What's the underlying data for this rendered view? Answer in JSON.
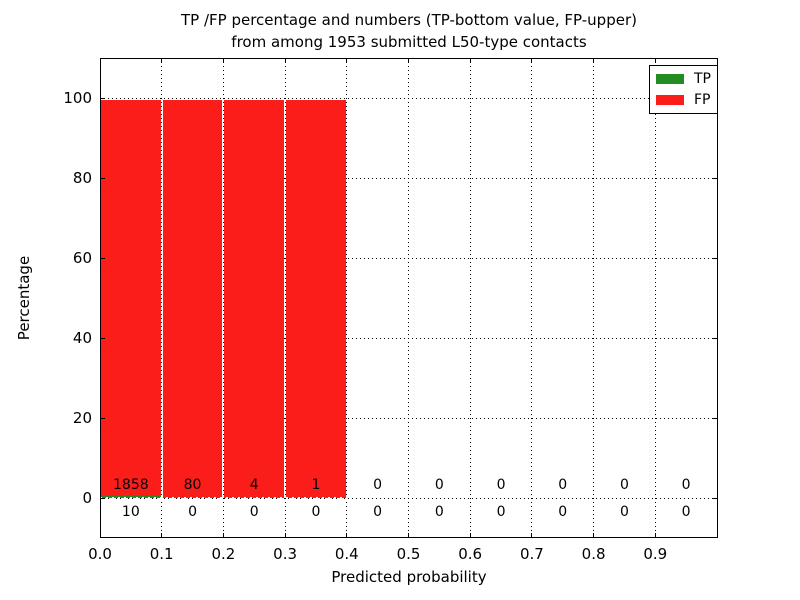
{
  "figure": {
    "title_line1": "TP /FP percentage and numbers (TP-bottom value, FP-upper)",
    "title_line2": "from among 1953 submitted L50-type contacts"
  },
  "axes": {
    "xlabel": "Predicted probability",
    "ylabel": "Percentage",
    "xtick_values": [
      0,
      0.1,
      0.2,
      0.3,
      0.4,
      0.5,
      0.6,
      0.7,
      0.8,
      0.9
    ],
    "xtick_labels": [
      "0.0",
      "0.1",
      "0.2",
      "0.3",
      "0.4",
      "0.5",
      "0.6",
      "0.7",
      "0.8",
      "0.9"
    ],
    "ytick_values": [
      0,
      20,
      40,
      60,
      80,
      100
    ],
    "ytick_labels": [
      "0",
      "20",
      "40",
      "60",
      "80",
      "100"
    ]
  },
  "legend": {
    "position": "upper right",
    "entries": [
      {
        "label": "TP",
        "color": "#228b22"
      },
      {
        "label": "FP",
        "color": "#fa1d1a"
      }
    ]
  },
  "chart_data": {
    "type": "bar",
    "stacked": true,
    "title": "TP /FP percentage and numbers (TP-bottom value, FP-upper)\nfrom among 1953 submitted L50-type contacts",
    "xlabel": "Predicted probability",
    "ylabel": "Percentage",
    "xlim": [
      0,
      1
    ],
    "ylim": [
      -10,
      110
    ],
    "grid": true,
    "grid_linestyle": "dotted",
    "legend_position": "upper right",
    "total_submitted": 1953,
    "bin_width": 0.1,
    "bin_starts": [
      0,
      0.1,
      0.2,
      0.3,
      0.4,
      0.5,
      0.6,
      0.7,
      0.8,
      0.9
    ],
    "series": [
      {
        "name": "TP",
        "color": "#228b22",
        "counts": [
          10,
          0,
          0,
          0,
          0,
          0,
          0,
          0,
          0,
          0
        ]
      },
      {
        "name": "FP",
        "color": "#fa1d1a",
        "counts": [
          1858,
          80,
          4,
          1,
          0,
          0,
          0,
          0,
          0,
          0
        ]
      }
    ],
    "value_labels": {
      "upper_row_series": "FP",
      "lower_row_series": "TP",
      "note": "percentages per bin are stacked TP(bottom)+FP(top) of that bin's total"
    }
  }
}
